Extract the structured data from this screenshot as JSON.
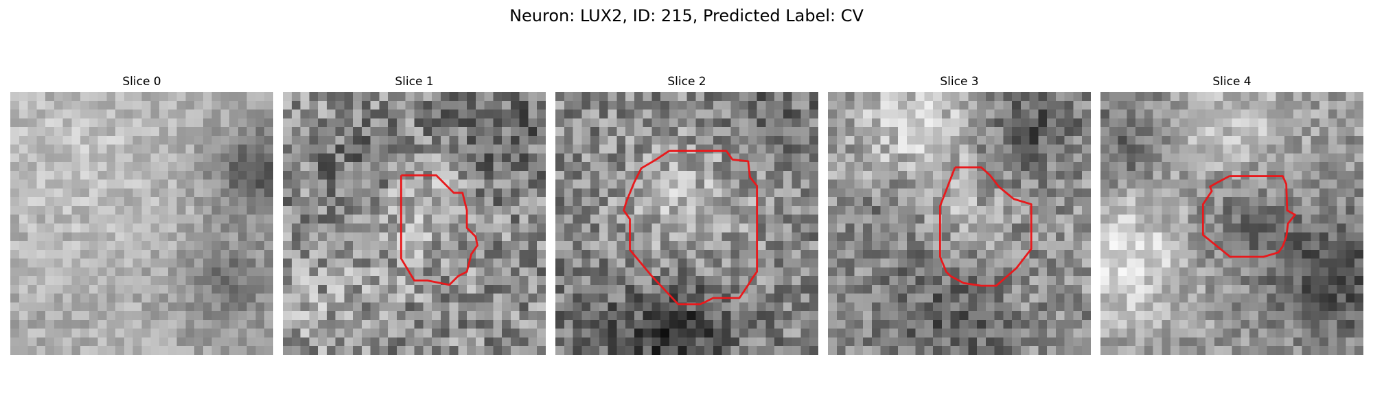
{
  "figure": {
    "title": "Neuron: LUX2, ID: 215, Predicted Label: CV",
    "contour_color": "#e8191c",
    "colormap": "gray"
  },
  "panels": [
    {
      "label": "Slice 0",
      "has_contour": false
    },
    {
      "label": "Slice 1",
      "has_contour": true
    },
    {
      "label": "Slice 2",
      "has_contour": true
    },
    {
      "label": "Slice 3",
      "has_contour": true
    },
    {
      "label": "Slice 4",
      "has_contour": true
    }
  ]
}
